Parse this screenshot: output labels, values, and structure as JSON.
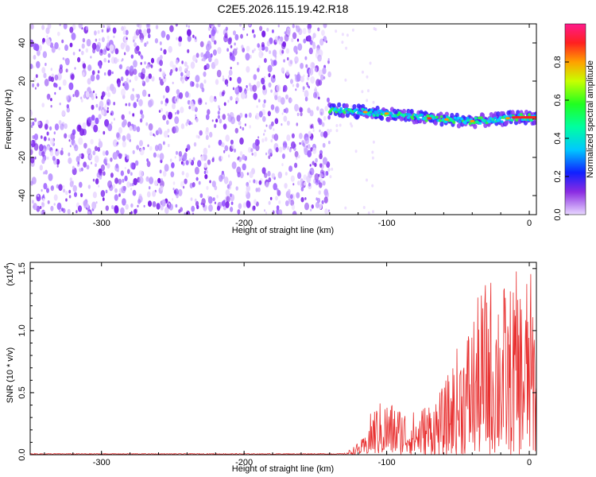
{
  "title": "C2E5.2026.115.19.42.R18",
  "chart_data": [
    {
      "type": "heatmap",
      "xlabel": "Height of straight line (km)",
      "ylabel": "Frequency (Hz)",
      "xlim": [
        -350,
        5
      ],
      "ylim": [
        -50,
        50
      ],
      "xticks": [
        -300,
        -200,
        -100,
        0
      ],
      "yticks": [
        40,
        20,
        0,
        -20,
        -40
      ],
      "noise_region_x": [
        -350,
        -140
      ],
      "signal_trace": {
        "x": [
          -140,
          -120,
          -100,
          -80,
          -60,
          -40,
          -20,
          -10,
          5
        ],
        "y": [
          5,
          4,
          3,
          1,
          0,
          -1,
          0,
          1,
          1
        ]
      },
      "colorbar": {
        "label": "Normalized spectral amplitude",
        "range": [
          0,
          1
        ],
        "ticks": [
          0.0,
          0.2,
          0.4,
          0.6,
          0.8
        ]
      }
    },
    {
      "type": "line",
      "xlabel": "Height of straight line (km)",
      "ylabel": "SNR (10 * v/v)",
      "yscale_label": "(x10",
      "yscale_exp": "4",
      "xlim": [
        -350,
        5
      ],
      "ylim": [
        0,
        1.55
      ],
      "xticks": [
        -300,
        -200,
        -100,
        0
      ],
      "yticks": [
        0.0,
        0.5,
        1.0,
        1.5
      ],
      "envelope": {
        "x": [
          -350,
          -130,
          -125,
          -115,
          -110,
          -100,
          -90,
          -80,
          -70,
          -60,
          -50,
          -40,
          -30,
          -20,
          -15,
          -10,
          -5,
          0,
          5
        ],
        "y": [
          0.01,
          0.01,
          0.05,
          0.15,
          0.4,
          0.45,
          0.4,
          0.35,
          0.45,
          0.55,
          0.9,
          1.15,
          1.45,
          1.5,
          1.3,
          1.5,
          1.4,
          1.55,
          1.2
        ]
      },
      "color": "#e83030"
    }
  ]
}
